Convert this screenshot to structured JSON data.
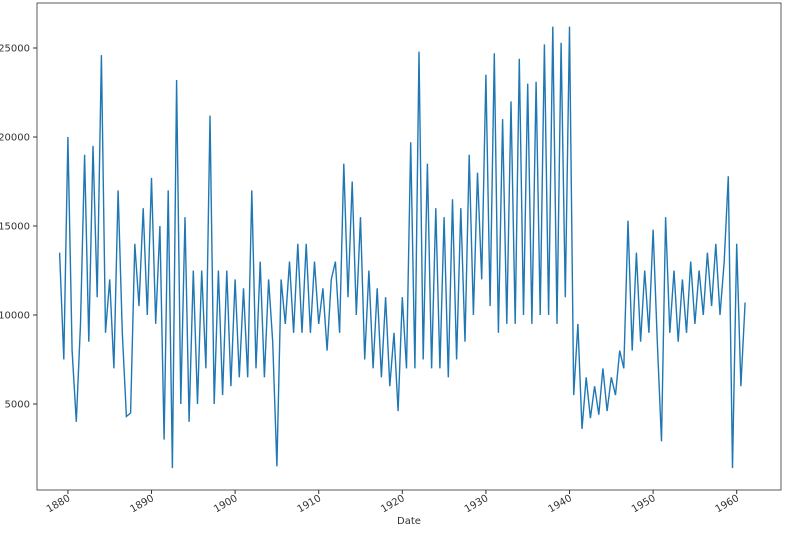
{
  "chart_data": {
    "type": "line",
    "x_label": "Date",
    "x": [
      1879,
      1879.5,
      1880,
      1880.5,
      1881,
      1881.5,
      1882,
      1882.5,
      1883,
      1883.5,
      1884,
      1884.5,
      1885,
      1885.5,
      1886,
      1886.5,
      1887,
      1887.5,
      1888,
      1888.5,
      1889,
      1889.5,
      1890,
      1890.5,
      1891,
      1891.5,
      1892,
      1892.5,
      1893,
      1893.5,
      1894,
      1894.5,
      1895,
      1895.5,
      1896,
      1896.5,
      1897,
      1897.5,
      1898,
      1898.5,
      1899,
      1899.5,
      1900,
      1900.5,
      1901,
      1901.5,
      1902,
      1902.5,
      1903,
      1903.5,
      1904,
      1904.5,
      1905,
      1905.5,
      1906,
      1906.5,
      1907,
      1907.5,
      1908,
      1908.5,
      1909,
      1909.5,
      1910,
      1910.5,
      1911,
      1911.5,
      1912,
      1912.5,
      1913,
      1913.5,
      1914,
      1914.5,
      1915,
      1915.5,
      1916,
      1916.5,
      1917,
      1917.5,
      1918,
      1918.5,
      1919,
      1919.5,
      1920,
      1920.5,
      1921,
      1921.5,
      1922,
      1922.5,
      1923,
      1923.5,
      1924,
      1924.5,
      1925,
      1925.5,
      1926,
      1926.5,
      1927,
      1927.5,
      1928,
      1928.5,
      1929,
      1929.5,
      1930,
      1930.5,
      1931,
      1931.5,
      1932,
      1932.5,
      1933,
      1933.5,
      1934,
      1934.5,
      1935,
      1935.5,
      1936,
      1936.5,
      1937,
      1937.5,
      1938,
      1938.5,
      1939,
      1939.5,
      1940,
      1940.5,
      1941,
      1941.5,
      1942,
      1942.5,
      1943,
      1943.5,
      1944,
      1944.5,
      1945,
      1945.5,
      1946,
      1946.5,
      1947,
      1947.5,
      1948,
      1948.5,
      1949,
      1949.5,
      1950,
      1950.5,
      1951,
      1951.5,
      1952,
      1952.5,
      1953,
      1953.5,
      1954,
      1954.5,
      1955,
      1955.5,
      1956,
      1956.5,
      1957,
      1957.5,
      1958,
      1958.5,
      1959,
      1959.5,
      1960,
      1960.5,
      1961
    ],
    "series": [
      {
        "color": "#1f77b4",
        "values": [
          13500,
          7500,
          20000,
          8000,
          4000,
          9500,
          19000,
          8500,
          19500,
          11000,
          24600,
          9000,
          12000,
          7000,
          17000,
          9000,
          4300,
          4500,
          14000,
          10500,
          16000,
          10000,
          17700,
          9500,
          15000,
          3000,
          17000,
          1400,
          23200,
          5000,
          15500,
          4000,
          12500,
          5000,
          12500,
          7000,
          21200,
          5000,
          12500,
          5500,
          12500,
          6000,
          12000,
          6500,
          11500,
          6500,
          17000,
          7000,
          13000,
          6500,
          12000,
          8500,
          1500,
          12000,
          9500,
          13000,
          9000,
          14000,
          9000,
          14000,
          9000,
          13000,
          9500,
          11500,
          8000,
          12000,
          13000,
          9000,
          18500,
          11000,
          17500,
          10000,
          15500,
          7500,
          12500,
          7000,
          11500,
          6500,
          11000,
          6000,
          9000,
          4600,
          11000,
          7000,
          19700,
          7000,
          24800,
          7500,
          18500,
          7000,
          16000,
          7000,
          15500,
          6500,
          16500,
          7500,
          16000,
          8500,
          19000,
          10000,
          18000,
          12000,
          23500,
          10500,
          24700,
          9000,
          21000,
          9500,
          22000,
          9500,
          24400,
          10000,
          23000,
          9500,
          23100,
          10000,
          25200,
          10000,
          26200,
          9500,
          25300,
          11000,
          26200,
          5500,
          9500,
          3600,
          6500,
          4200,
          6000,
          4400,
          7000,
          4600,
          6500,
          5500,
          8000,
          7000,
          15300,
          8000,
          13500,
          8500,
          12500,
          9000,
          14800,
          8500,
          2900,
          15500,
          9000,
          12500,
          8500,
          12000,
          9000,
          13000,
          9500,
          12500,
          10000,
          13500,
          10500,
          14000,
          10000,
          13000,
          17800,
          1400,
          14000,
          6000,
          10700
        ]
      }
    ],
    "xlim": [
      1876.3,
      1965.3
    ],
    "xticks": [
      1880,
      1890,
      1900,
      1910,
      1920,
      1930,
      1940,
      1950,
      1960
    ],
    "ylim": [
      168,
      27528
    ],
    "yticks": [
      5000,
      10000,
      15000,
      20000,
      25000
    ]
  }
}
